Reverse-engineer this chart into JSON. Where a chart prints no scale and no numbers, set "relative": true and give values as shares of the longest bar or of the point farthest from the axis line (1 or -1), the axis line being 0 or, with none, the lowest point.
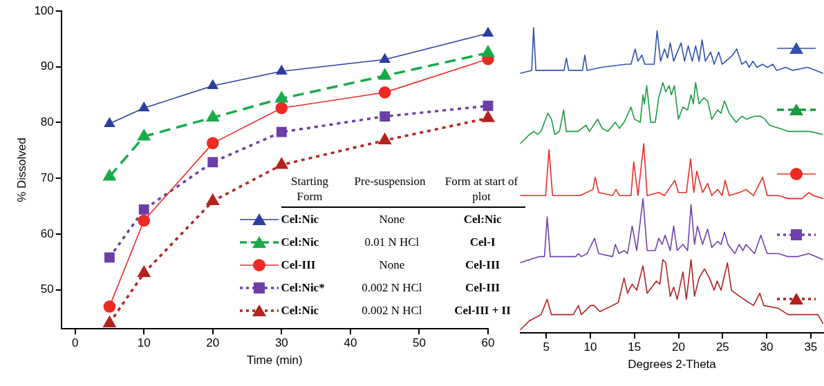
{
  "chart_data": [
    {
      "type": "line",
      "xlabel": "Time (min)",
      "ylabel": "% Dissolved",
      "x": [
        5,
        10,
        20,
        30,
        45,
        60
      ],
      "xlim": [
        -2,
        60
      ],
      "xticks": [
        0,
        10,
        20,
        30,
        40,
        50,
        60
      ],
      "ylim": [
        43,
        100
      ],
      "yticks": [
        50,
        60,
        70,
        80,
        90,
        100
      ],
      "legend": "bottom right",
      "series": [
        {
          "name": "Cel:Nic",
          "color": "#2b3fa0",
          "marker": "triangle",
          "line_style": "solid",
          "values": [
            79.8,
            82.6,
            86.6,
            89.2,
            91.3,
            96.0
          ]
        },
        {
          "name": "Cel:Nic",
          "color": "#1aaa4a",
          "marker": "triangle",
          "line_style": "dashed",
          "values": [
            70.3,
            77.5,
            80.9,
            84.3,
            88.4,
            92.5
          ]
        },
        {
          "name": "Cel-III",
          "color": "#ee2a24",
          "marker": "circle",
          "line_style": "solid",
          "values": [
            47.0,
            62.4,
            76.3,
            82.6,
            85.4,
            91.4
          ]
        },
        {
          "name": "Cel:Nic*",
          "color": "#6a3fa8",
          "marker": "square",
          "line_style": "dotted",
          "values": [
            55.8,
            64.4,
            72.9,
            78.3,
            81.1,
            83.0
          ]
        },
        {
          "name": "Cel:Nic",
          "color": "#b5221f",
          "marker": "triangle",
          "line_style": "dotted",
          "values": [
            44,
            53.0,
            65.9,
            72.4,
            76.8,
            80.8
          ]
        }
      ],
      "annotations": [
        "Starting Form",
        "Pre-suspension",
        "Form at start of plot",
        "None",
        "Cel:Nic",
        "0.01 N HCl",
        "Cel-I",
        "None",
        "Cel-III",
        "0.002 N HCl",
        "Cel-III",
        "0.002 N HCl",
        "Cel-III + II"
      ]
    },
    {
      "type": "line",
      "xlabel": "Degrees 2-Theta",
      "xlim": [
        2,
        36.5
      ],
      "xticks": [
        5,
        10,
        15,
        20,
        25,
        30,
        35
      ],
      "relative": true,
      "tick_labels": "x",
      "series": [
        {
          "color": "#3050b0",
          "x": [
            2.04,
            3.35,
            3.56,
            3.82,
            7.02,
            7.28,
            7.54,
            9.11,
            9.37,
            9.63,
            11.21,
            14.09,
            14.61,
            15.08,
            15.4,
            15.84,
            16.18,
            17.23,
            17.57,
            17.96,
            18.41,
            18.75,
            19.06,
            19.45,
            20.29,
            20.68,
            21.1,
            21.55,
            21.94,
            22.33,
            22.67,
            23.04,
            23.64,
            24.04,
            24.56,
            24.95,
            26.13,
            26.6,
            27.18,
            27.65,
            28.02,
            28.44,
            28.88,
            29.54,
            30.06,
            30.71,
            31.11,
            32.15,
            32.94,
            34.64,
            35.56,
            36.4
          ],
          "values": [
            0.85,
            0.86,
            1.0,
            0.86,
            0.86,
            0.9,
            0.86,
            0.86,
            0.91,
            0.86,
            0.87,
            0.88,
            0.88,
            0.93,
            0.89,
            0.91,
            0.88,
            0.88,
            0.99,
            0.89,
            0.93,
            0.9,
            0.95,
            0.89,
            0.95,
            0.89,
            0.94,
            0.89,
            0.94,
            0.89,
            0.96,
            0.89,
            0.92,
            0.88,
            0.92,
            0.88,
            0.91,
            0.93,
            0.88,
            0.89,
            0.87,
            0.89,
            0.87,
            0.88,
            0.87,
            0.88,
            0.86,
            0.87,
            0.86,
            0.87,
            0.86,
            0.85
          ]
        },
        {
          "color": "#1a9a40",
          "x": [
            2.04,
            3.09,
            3.61,
            4.01,
            4.4,
            5.18,
            5.58,
            5.97,
            6.49,
            6.96,
            7.28,
            8.59,
            9.5,
            9.9,
            10.81,
            11.34,
            11.99,
            12.83,
            13.3,
            13.82,
            14.61,
            15.0,
            15.66,
            15.97,
            16.13,
            16.39,
            16.84,
            17.36,
            17.75,
            18.22,
            18.54,
            18.93,
            19.19,
            19.53,
            19.98,
            20.5,
            21.03,
            21.42,
            21.68,
            21.94,
            22.33,
            22.86,
            23.3,
            23.77,
            24.43,
            24.82,
            25.21,
            25.74,
            26.52,
            27.18,
            27.7,
            28.62,
            29.27,
            29.8,
            30.32,
            31.5,
            32.42,
            33.73,
            34.9,
            36.4
          ],
          "values": [
            0.62,
            0.65,
            0.66,
            0.65,
            0.66,
            0.72,
            0.7,
            0.65,
            0.66,
            0.73,
            0.66,
            0.66,
            0.68,
            0.66,
            0.7,
            0.67,
            0.66,
            0.69,
            0.67,
            0.69,
            0.74,
            0.7,
            0.69,
            0.78,
            0.75,
            0.81,
            0.69,
            0.69,
            0.77,
            0.82,
            0.79,
            0.81,
            0.78,
            0.81,
            0.7,
            0.74,
            0.73,
            0.78,
            0.75,
            0.82,
            0.75,
            0.77,
            0.76,
            0.7,
            0.73,
            0.72,
            0.76,
            0.72,
            0.69,
            0.71,
            0.7,
            0.71,
            0.71,
            0.7,
            0.68,
            0.67,
            0.66,
            0.66,
            0.66,
            0.65
          ]
        },
        {
          "color": "#ee2a24",
          "x": [
            2.04,
            4.92,
            5.31,
            5.71,
            8.85,
            10.29,
            10.55,
            10.94,
            12.52,
            12.91,
            13.3,
            14.61,
            14.92,
            15.4,
            16.05,
            16.44,
            17.75,
            18.41,
            19.58,
            19.98,
            20.89,
            21.37,
            21.73,
            22.07,
            22.73,
            23.3,
            23.77,
            24.43,
            24.95,
            25.29,
            25.74,
            26.92,
            27.65,
            28.49,
            29.54,
            30.06,
            31.37,
            32.42,
            33.99,
            34.77,
            35.3,
            36.4
          ],
          "values": [
            0.45,
            0.45,
            0.6,
            0.45,
            0.45,
            0.47,
            0.51,
            0.46,
            0.45,
            0.47,
            0.45,
            0.45,
            0.56,
            0.45,
            0.62,
            0.45,
            0.46,
            0.45,
            0.5,
            0.46,
            0.46,
            0.57,
            0.46,
            0.53,
            0.46,
            0.49,
            0.45,
            0.47,
            0.45,
            0.5,
            0.45,
            0.46,
            0.47,
            0.45,
            0.51,
            0.45,
            0.45,
            0.44,
            0.44,
            0.46,
            0.45,
            0.44
          ]
        },
        {
          "color": "#7040b0",
          "x": [
            2.04,
            4.14,
            4.79,
            5.1,
            5.45,
            8.33,
            8.64,
            8.98,
            9.63,
            10.47,
            10.94,
            12.52,
            12.83,
            13.25,
            13.82,
            14.22,
            14.74,
            15.26,
            15.97,
            16.44,
            17.36,
            17.75,
            18.14,
            18.48,
            19.06,
            19.45,
            19.85,
            20.5,
            21.03,
            21.42,
            21.81,
            22.15,
            22.73,
            23.3,
            23.77,
            24.43,
            24.82,
            25.21,
            25.61,
            26.39,
            26.86,
            27.31,
            27.65,
            28.62,
            29.33,
            30.06,
            31.37,
            32.42,
            33.46,
            34.77,
            36.4
          ],
          "values": [
            0.23,
            0.25,
            0.25,
            0.38,
            0.25,
            0.25,
            0.26,
            0.25,
            0.26,
            0.31,
            0.26,
            0.25,
            0.29,
            0.26,
            0.27,
            0.26,
            0.35,
            0.27,
            0.44,
            0.27,
            0.27,
            0.31,
            0.29,
            0.32,
            0.27,
            0.35,
            0.27,
            0.29,
            0.27,
            0.42,
            0.29,
            0.35,
            0.29,
            0.34,
            0.28,
            0.3,
            0.29,
            0.33,
            0.29,
            0.26,
            0.29,
            0.27,
            0.29,
            0.26,
            0.32,
            0.26,
            0.26,
            0.25,
            0.25,
            0.26,
            0.24
          ]
        },
        {
          "color": "#b02020",
          "x": [
            2.04,
            3.09,
            4.4,
            5.1,
            5.58,
            7.02,
            8.06,
            8.64,
            8.98,
            10.03,
            10.42,
            11.07,
            12.52,
            13.17,
            13.82,
            14.22,
            14.74,
            15.26,
            15.97,
            16.44,
            17.49,
            17.88,
            18.22,
            18.54,
            19.06,
            19.45,
            19.85,
            20.5,
            20.89,
            21.42,
            21.81,
            22.33,
            22.94,
            23.51,
            24.04,
            24.38,
            24.82,
            25.55,
            26.0,
            26.92,
            27.44,
            28.49,
            29.22,
            29.67,
            31.37,
            32.42,
            33.73,
            35.04,
            35.82,
            36.4
          ],
          "values": [
            0.01,
            0.04,
            0.06,
            0.11,
            0.06,
            0.06,
            0.06,
            0.09,
            0.06,
            0.09,
            0.09,
            0.07,
            0.09,
            0.1,
            0.18,
            0.13,
            0.16,
            0.14,
            0.22,
            0.13,
            0.17,
            0.16,
            0.24,
            0.23,
            0.12,
            0.15,
            0.11,
            0.2,
            0.11,
            0.24,
            0.12,
            0.18,
            0.21,
            0.18,
            0.14,
            0.17,
            0.14,
            0.23,
            0.14,
            0.12,
            0.11,
            0.09,
            0.13,
            0.09,
            0.08,
            0.06,
            0.06,
            0.06,
            0.06,
            0.03
          ]
        }
      ]
    }
  ]
}
